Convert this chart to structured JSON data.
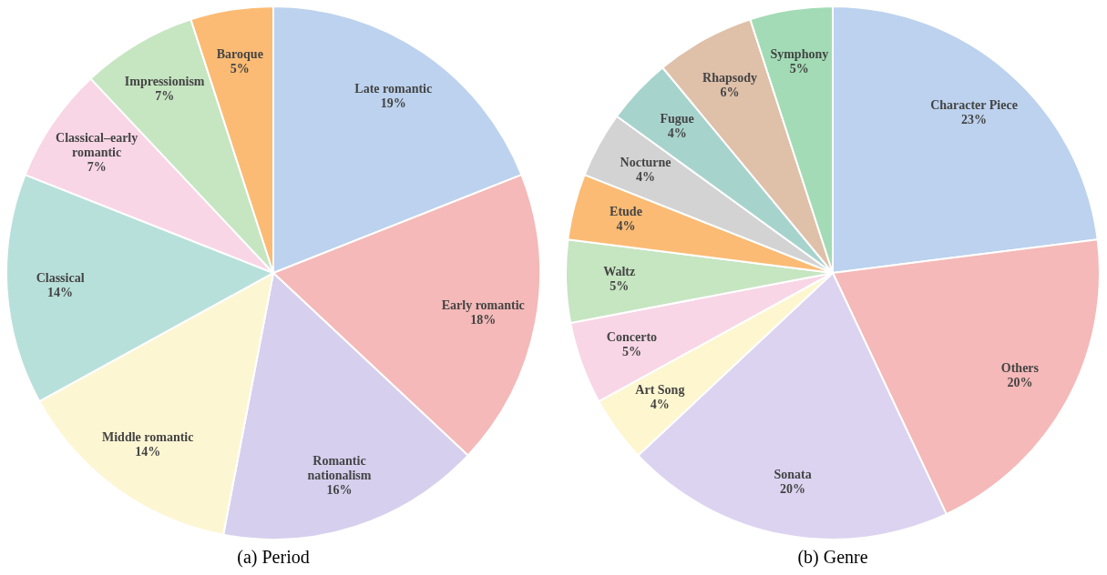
{
  "chart_data": [
    {
      "type": "pie",
      "title": "(a) Period",
      "categories": [
        "Late romantic",
        "Early romantic",
        "Romantic\nnationalism",
        "Middle romantic",
        "Classical",
        "Classical–early\nromantic",
        "Impressionism",
        "Baroque"
      ],
      "values": [
        19,
        18,
        16,
        14,
        14,
        7,
        7,
        5
      ],
      "value_labels": [
        "19%",
        "18%",
        "16%",
        "14%",
        "14%",
        "7%",
        "7%",
        "5%"
      ],
      "colors": [
        "#bcd2ee",
        "#f4b9b8",
        "#d6cfee",
        "#fdf6d3",
        "#b8e0da",
        "#f8d6e6",
        "#c6e5c1",
        "#fbbb74"
      ]
    },
    {
      "type": "pie",
      "title": "(b) Genre",
      "categories": [
        "Character Piece",
        "Others",
        "Sonata",
        "Art Song",
        "Concerto",
        "Waltz",
        "Etude",
        "Nocturne",
        "Fugue",
        "Rhapsody",
        "Symphony"
      ],
      "values": [
        23,
        20,
        20,
        4,
        5,
        5,
        4,
        4,
        4,
        6,
        5
      ],
      "value_labels": [
        "23%",
        "20%",
        "20%",
        "4%",
        "5%",
        "5%",
        "4%",
        "4%",
        "4%",
        "6%",
        "5%"
      ],
      "colors": [
        "#bcd2ee",
        "#f4b9b8",
        "#dcd3f0",
        "#fdf6cf",
        "#f8d6e6",
        "#c6e5c1",
        "#fbbb74",
        "#d3d3d3",
        "#a7d3cd",
        "#dfc0a9",
        "#a2dbb5"
      ]
    }
  ]
}
